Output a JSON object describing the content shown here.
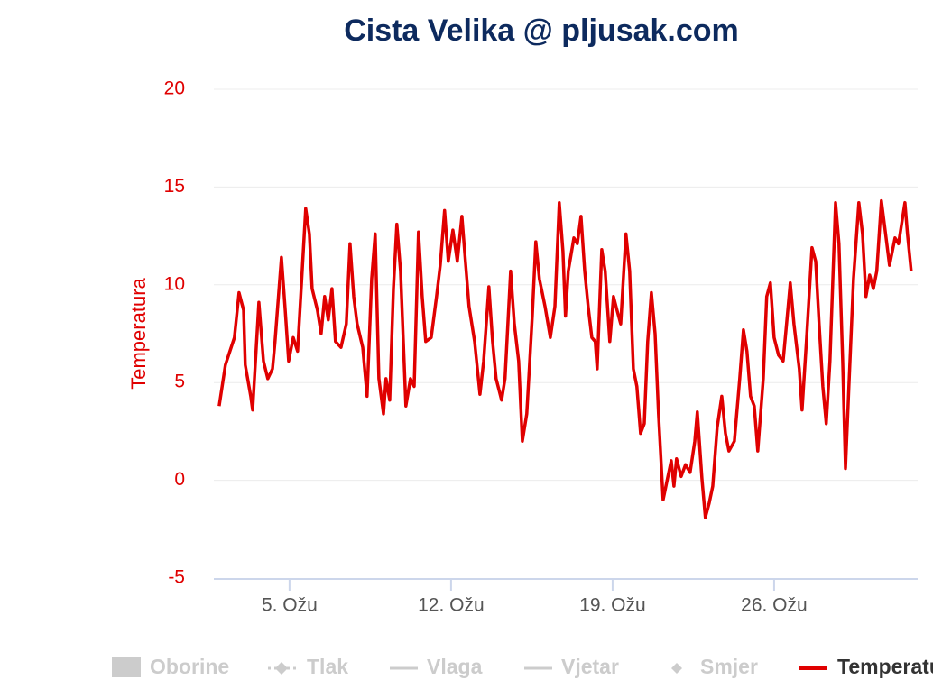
{
  "chart_data": {
    "type": "line",
    "title": "Cista Velika @ pljusak.com",
    "ylabel": "Temperatura",
    "ylim": [
      -5,
      20
    ],
    "yticks": [
      -5,
      0,
      5,
      10,
      15,
      20
    ],
    "xlim": [
      1.72,
      32.22
    ],
    "xticks": [
      {
        "value": 5,
        "label": "5. Ožu"
      },
      {
        "value": 12,
        "label": "12. Ožu"
      },
      {
        "value": 19,
        "label": "19. Ožu"
      },
      {
        "value": 26,
        "label": "26. Ožu"
      }
    ],
    "grid": true,
    "legend": [
      "Oborine",
      "Tlak",
      "Vlaga",
      "Vjetar",
      "Smjer"
    ],
    "series": [
      {
        "name": "Temperatura",
        "color": "#e00000",
        "x": [
          1.95,
          2.22,
          2.61,
          2.81,
          3.01,
          3.08,
          3.32,
          3.4,
          3.67,
          3.87,
          4.06,
          4.26,
          4.37,
          4.65,
          4.8,
          4.96,
          5.16,
          5.35,
          5.55,
          5.7,
          5.86,
          5.98,
          6.21,
          6.37,
          6.52,
          6.68,
          6.84,
          6.99,
          7.23,
          7.46,
          7.62,
          7.78,
          7.93,
          8.17,
          8.36,
          8.56,
          8.71,
          8.87,
          9.07,
          9.18,
          9.34,
          9.5,
          9.65,
          9.81,
          10.04,
          10.24,
          10.4,
          10.59,
          10.75,
          10.9,
          11.14,
          11.37,
          11.53,
          11.72,
          11.88,
          12.08,
          12.27,
          12.47,
          12.62,
          12.78,
          13.02,
          13.25,
          13.41,
          13.64,
          13.8,
          13.95,
          14.19,
          14.34,
          14.58,
          14.74,
          14.93,
          15.09,
          15.28,
          15.52,
          15.67,
          15.83,
          16.07,
          16.3,
          16.5,
          16.69,
          16.85,
          16.96,
          17.08,
          17.32,
          17.47,
          17.63,
          17.79,
          17.94,
          18.1,
          18.25,
          18.33,
          18.53,
          18.68,
          18.88,
          19.04,
          19.19,
          19.35,
          19.58,
          19.74,
          19.9,
          20.05,
          20.21,
          20.37,
          20.52,
          20.68,
          20.84,
          20.99,
          21.19,
          21.38,
          21.54,
          21.66,
          21.77,
          21.97,
          22.16,
          22.36,
          22.56,
          22.67,
          22.87,
          23.02,
          23.18,
          23.34,
          23.53,
          23.73,
          23.89,
          24.04,
          24.28,
          24.51,
          24.67,
          24.82,
          24.98,
          25.14,
          25.29,
          25.53,
          25.68,
          25.84,
          26.0,
          26.19,
          26.39,
          26.54,
          26.7,
          26.86,
          27.09,
          27.21,
          27.4,
          27.64,
          27.8,
          27.95,
          28.11,
          28.26,
          28.42,
          28.66,
          28.81,
          28.97,
          29.09,
          29.24,
          29.44,
          29.67,
          29.83,
          29.98,
          30.14,
          30.3,
          30.45,
          30.65,
          30.85,
          31.0,
          31.24,
          31.39,
          31.67,
          31.78,
          31.94
        ],
        "values": [
          3.8,
          5.9,
          7.3,
          9.6,
          8.7,
          5.9,
          4.3,
          3.6,
          9.1,
          6.1,
          5.2,
          5.7,
          7.1,
          11.4,
          8.9,
          6.1,
          7.3,
          6.6,
          10.7,
          13.9,
          12.6,
          9.8,
          8.7,
          7.5,
          9.4,
          8.2,
          9.8,
          7.1,
          6.8,
          8.0,
          12.1,
          9.4,
          8.0,
          6.8,
          4.3,
          10.3,
          12.6,
          5.2,
          3.4,
          5.2,
          4.1,
          9.8,
          13.1,
          10.7,
          3.8,
          5.2,
          4.8,
          12.7,
          9.4,
          7.1,
          7.3,
          9.4,
          11.0,
          13.8,
          11.2,
          12.8,
          11.2,
          13.5,
          11.2,
          8.9,
          7.1,
          4.4,
          6.1,
          9.9,
          7.1,
          5.2,
          4.1,
          5.2,
          10.7,
          8.0,
          6.1,
          2.0,
          3.4,
          8.4,
          12.2,
          10.3,
          8.9,
          7.3,
          8.9,
          14.2,
          11.7,
          8.4,
          10.7,
          12.4,
          12.1,
          13.5,
          10.7,
          8.9,
          7.3,
          7.1,
          5.7,
          11.8,
          10.7,
          7.1,
          9.4,
          8.7,
          8.0,
          12.6,
          10.7,
          5.7,
          4.8,
          2.4,
          2.9,
          7.1,
          9.6,
          7.5,
          3.4,
          -1.0,
          0.1,
          1.0,
          -0.3,
          1.1,
          0.2,
          0.8,
          0.4,
          2.0,
          3.5,
          0.1,
          -1.9,
          -1.2,
          -0.3,
          2.7,
          4.3,
          2.4,
          1.5,
          2.0,
          5.2,
          7.7,
          6.6,
          4.3,
          3.8,
          1.5,
          5.2,
          9.4,
          10.1,
          7.3,
          6.4,
          6.1,
          8.0,
          10.1,
          8.0,
          5.7,
          3.6,
          7.1,
          11.9,
          11.2,
          8.0,
          4.8,
          2.9,
          6.1,
          14.2,
          12.1,
          6.1,
          0.6,
          4.8,
          10.3,
          14.2,
          12.6,
          9.4,
          10.5,
          9.8,
          10.7,
          14.3,
          12.4,
          11.0,
          12.4,
          12.1,
          14.2,
          12.6,
          10.7
        ]
      }
    ]
  }
}
